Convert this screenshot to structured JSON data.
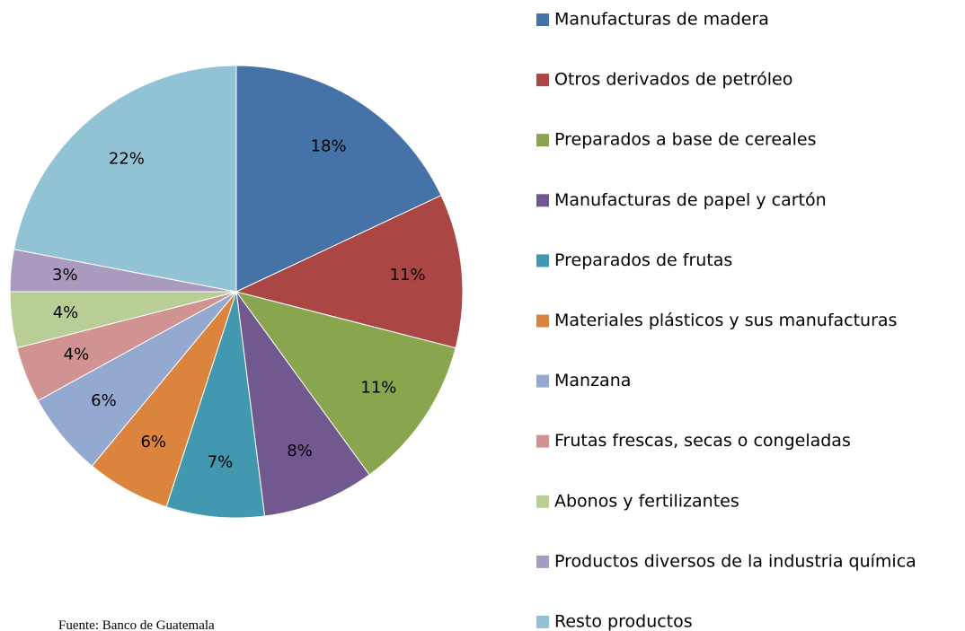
{
  "chart_data": {
    "type": "pie",
    "categories": [
      "Manufacturas de madera",
      "Otros derivados de petróleo",
      "Preparados a base de cereales",
      "Manufacturas de papel y cartón",
      "Preparados de frutas",
      "Materiales plásticos y sus manufacturas",
      "Manzana",
      "Frutas frescas, secas o congeladas",
      "Abonos y fertilizantes",
      "Productos diversos de la industria química",
      "Resto productos"
    ],
    "values": [
      18,
      11,
      11,
      8,
      7,
      6,
      6,
      4,
      4,
      3,
      22
    ],
    "value_labels": [
      "18%",
      "11%",
      "11%",
      "8%",
      "7%",
      "6%",
      "6%",
      "4%",
      "4%",
      "3%",
      "22%"
    ],
    "colors": [
      "#4572a7",
      "#aa4643",
      "#89a54e",
      "#71588f",
      "#4198af",
      "#db843d",
      "#93a9cf",
      "#d19392",
      "#b9cd96",
      "#a99bbd",
      "#92c3d4"
    ],
    "legend": "right",
    "source": "Fuente: Banco de Guatemala"
  }
}
